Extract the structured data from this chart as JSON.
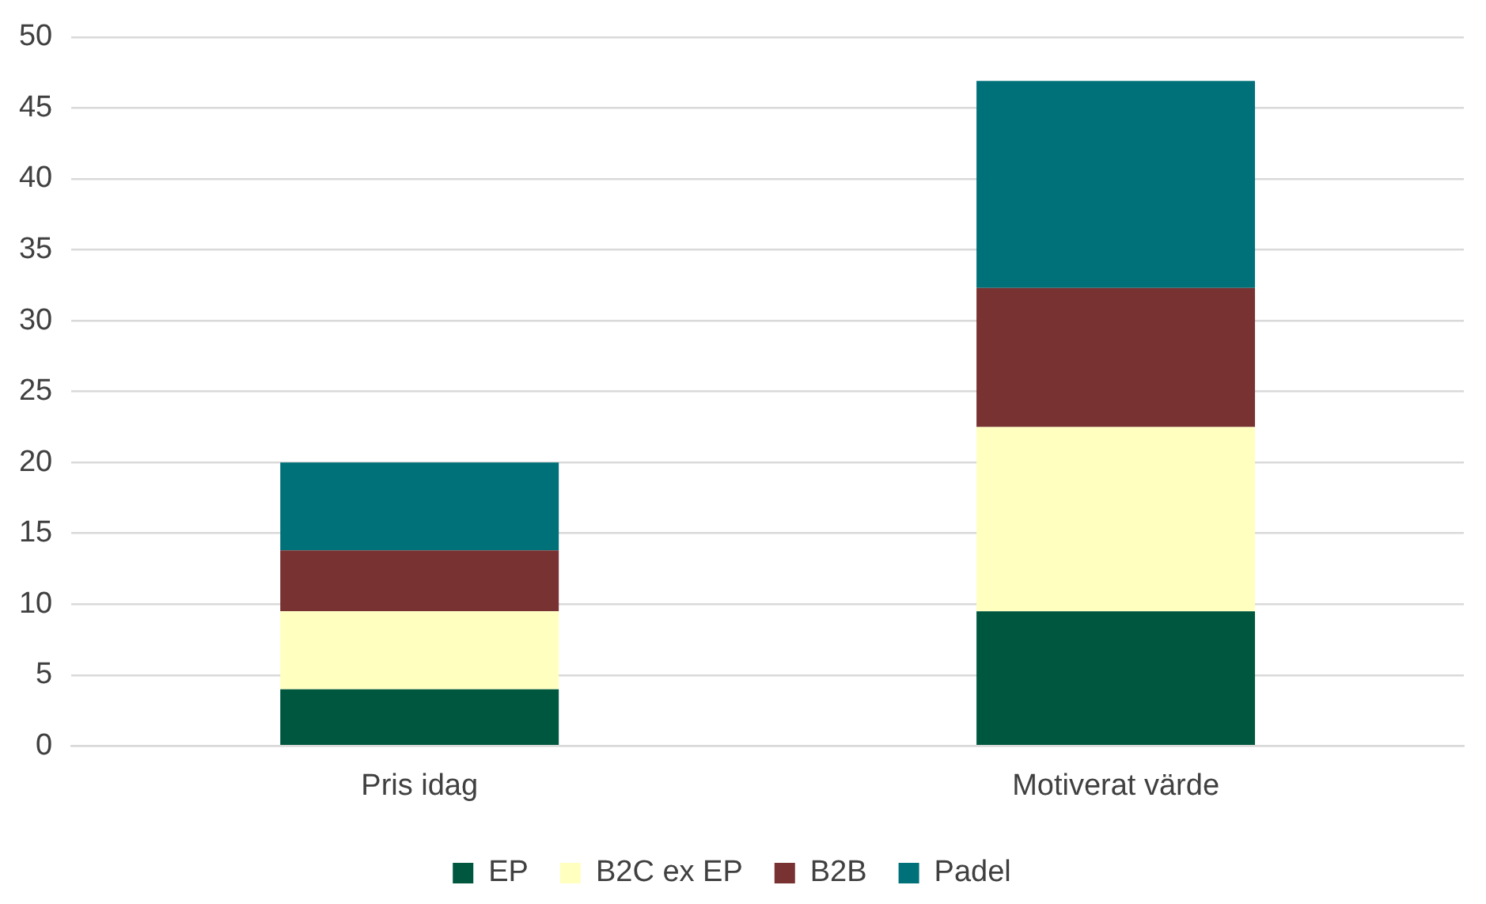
{
  "chart_data": {
    "type": "bar",
    "stacked": true,
    "categories": [
      "Pris idag",
      "Motiverat värde"
    ],
    "series": [
      {
        "name": "EP",
        "color": "#00573f",
        "values": [
          4,
          9.5
        ]
      },
      {
        "name": "B2C ex EP",
        "color": "#ffffc0",
        "values": [
          5.5,
          13
        ]
      },
      {
        "name": "B2B",
        "color": "#783232",
        "values": [
          4.3,
          9.8
        ]
      },
      {
        "name": "Padel",
        "color": "#007079",
        "values": [
          6.2,
          14.6
        ]
      }
    ],
    "ylim": [
      0,
      50
    ],
    "yticks": [
      0,
      5,
      10,
      15,
      20,
      25,
      30,
      35,
      40,
      45,
      50
    ],
    "grid": "y",
    "legend": "bottom"
  }
}
